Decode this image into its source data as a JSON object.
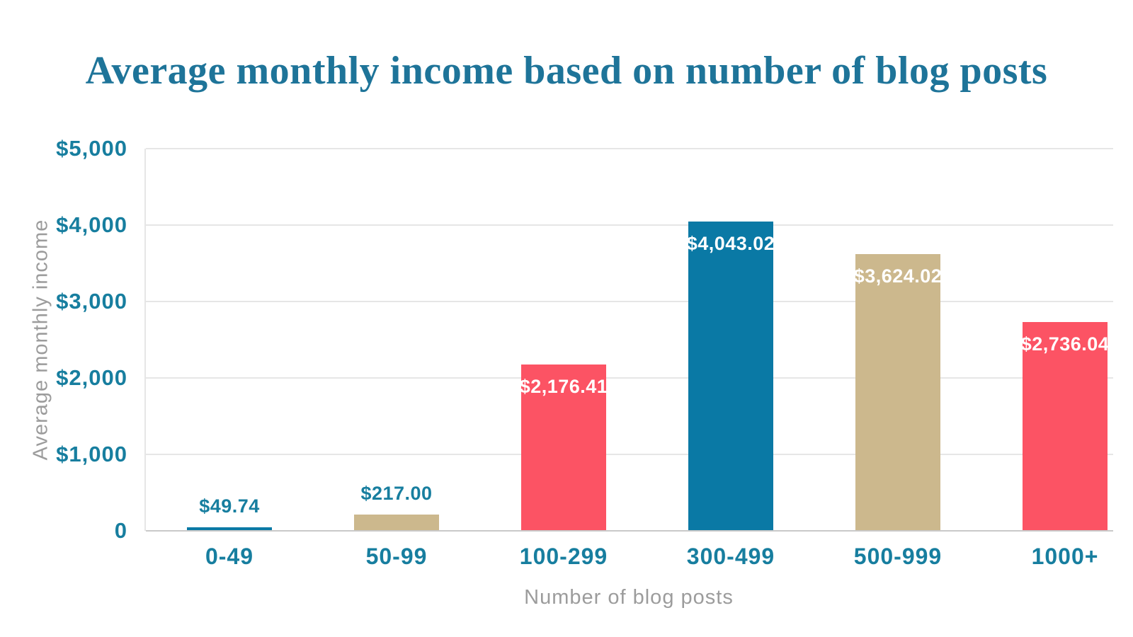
{
  "chart_data": {
    "type": "bar",
    "title": "Average monthly income based on number of blog posts",
    "xlabel": "Number of blog posts",
    "ylabel": "Average monthly income",
    "categories": [
      "0-49",
      "50-99",
      "100-299",
      "300-499",
      "500-999",
      "1000+"
    ],
    "values": [
      49.74,
      217.0,
      2176.41,
      4043.02,
      3624.02,
      2736.04
    ],
    "value_labels": [
      "$49.74",
      "$217.00",
      "$2,176.41",
      "$4,043.02",
      "$3,624.02",
      "$2,736.04"
    ],
    "bar_colors": [
      "#0a79a5",
      "#ccb88d",
      "#fc5364",
      "#0a79a5",
      "#ccb88d",
      "#fc5364"
    ],
    "ylim": [
      0,
      5000
    ],
    "yticks": [
      {
        "value": 0,
        "label": "0"
      },
      {
        "value": 1000,
        "label": "$1,000"
      },
      {
        "value": 2000,
        "label": "$2,000"
      },
      {
        "value": 3000,
        "label": "$3,000"
      },
      {
        "value": 4000,
        "label": "$4,000"
      },
      {
        "value": 5000,
        "label": "$5,000"
      }
    ],
    "grid": true,
    "legend": false,
    "colors": {
      "title_text": "#1e7499",
      "tick_text": "#177e9f",
      "axis_title_text": "#9c9c9c",
      "gridline": "#e6e6e6",
      "baseline": "#c9c9c9",
      "background": "#ffffff"
    }
  }
}
